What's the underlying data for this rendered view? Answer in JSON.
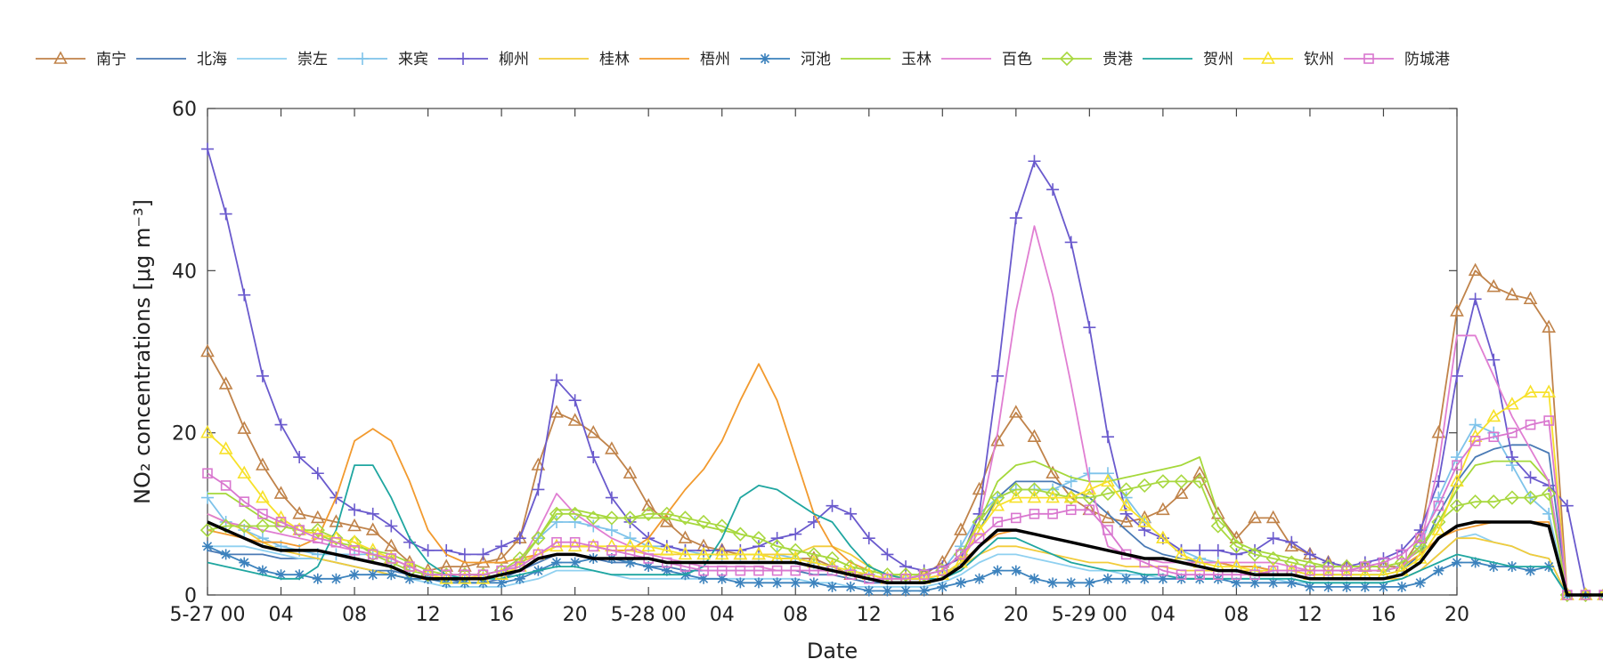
{
  "chart_data": {
    "type": "line",
    "xlabel": "Date",
    "ylabel": "NO₂ concentrations [μg m⁻³]",
    "ylim": [
      0,
      60
    ],
    "yticks": [
      0,
      20,
      40,
      60
    ],
    "xlim": [
      0,
      68
    ],
    "xticks": [
      {
        "x": 0,
        "label": "5-27 00"
      },
      {
        "x": 4,
        "label": "04"
      },
      {
        "x": 8,
        "label": "08"
      },
      {
        "x": 12,
        "label": "12"
      },
      {
        "x": 16,
        "label": "16"
      },
      {
        "x": 20,
        "label": "20"
      },
      {
        "x": 24,
        "label": "5-28 00"
      },
      {
        "x": 28,
        "label": "04"
      },
      {
        "x": 32,
        "label": "08"
      },
      {
        "x": 36,
        "label": "12"
      },
      {
        "x": 40,
        "label": "16"
      },
      {
        "x": 44,
        "label": "20"
      },
      {
        "x": 48,
        "label": "5-29 00"
      },
      {
        "x": 52,
        "label": "04"
      },
      {
        "x": 56,
        "label": "08"
      },
      {
        "x": 60,
        "label": "12"
      },
      {
        "x": 64,
        "label": "16"
      },
      {
        "x": 68,
        "label": "20"
      }
    ],
    "grid": false,
    "legend_position": "top",
    "series": [
      {
        "name": "南宁",
        "color": "#c0834a",
        "marker": "triangle",
        "values": [
          30,
          26,
          20.5,
          16,
          12.5,
          10,
          9.5,
          9,
          8.5,
          8,
          6,
          4,
          3,
          3.5,
          3.5,
          4,
          4.5,
          7,
          16,
          22.5,
          21.5,
          20,
          18,
          15,
          11,
          9,
          7,
          6,
          5.5,
          5,
          5,
          4.5,
          4.5,
          4.5,
          3.5,
          2.5,
          2.5,
          2,
          2,
          2.5,
          4,
          8,
          13,
          19,
          22.5,
          19.5,
          15,
          12,
          10.5,
          9.5,
          9,
          9.5,
          10.5,
          12.5,
          15,
          10,
          7,
          9.5,
          9.5,
          6,
          5,
          4,
          3.5,
          3.5,
          3.5,
          3.5,
          7,
          20,
          35,
          40,
          38,
          37,
          36.5,
          33,
          0,
          0,
          0,
          0,
          0,
          0
        ]
      },
      {
        "name": "北海",
        "color": "#4a7ab5",
        "marker": "none",
        "values": [
          5.5,
          5,
          5,
          5,
          4.5,
          4.5,
          4.5,
          4,
          3.5,
          3,
          3,
          2.5,
          2,
          2,
          1.5,
          1.5,
          2,
          3,
          4,
          5,
          5,
          4.5,
          4,
          4,
          3.5,
          3.5,
          3,
          3,
          3,
          3,
          3,
          3,
          3,
          2.5,
          2.5,
          2,
          1.5,
          1.5,
          1.5,
          1.5,
          2,
          4,
          8,
          12,
          14,
          14,
          14,
          13,
          12,
          10,
          8,
          6,
          5,
          4.5,
          4,
          4,
          3.5,
          3.5,
          3,
          3,
          2.5,
          2.5,
          2.5,
          2.5,
          2.5,
          3,
          5,
          10,
          14,
          17,
          18,
          18.5,
          18.5,
          17.5,
          0,
          0,
          0,
          0,
          0,
          0
        ]
      },
      {
        "name": "崇左",
        "color": "#8fd0f0",
        "marker": "none",
        "values": [
          6,
          6,
          6,
          5.5,
          5,
          4.5,
          4.5,
          4,
          3.5,
          3,
          2.5,
          2,
          1.5,
          1,
          1,
          1,
          1,
          1.5,
          2,
          3,
          3,
          3,
          2.5,
          2,
          2,
          2,
          2,
          2,
          2,
          2,
          2,
          2,
          2,
          1.5,
          1.5,
          1,
          1,
          1,
          1,
          1,
          1.5,
          2.5,
          4,
          5,
          5,
          4.5,
          4,
          3.5,
          3,
          3,
          2.5,
          2.5,
          2,
          2,
          2,
          2,
          2,
          2,
          2,
          1.5,
          1.5,
          1.5,
          1.5,
          1.5,
          1.5,
          2,
          3,
          5,
          7,
          7.5,
          6.5,
          6,
          5,
          4.5,
          0,
          0,
          0,
          0,
          0,
          0
        ]
      },
      {
        "name": "来宾",
        "color": "#7ec3ea",
        "marker": "plus",
        "values": [
          12,
          9,
          8,
          7,
          6,
          5.5,
          5,
          5,
          5,
          5,
          4,
          3,
          2.5,
          2.5,
          2.5,
          2.5,
          3,
          4,
          7,
          9,
          9,
          8.5,
          8,
          7,
          6,
          6,
          5.5,
          5,
          5,
          5,
          5,
          5,
          4.5,
          4,
          3.5,
          3,
          2.5,
          2,
          2,
          2.5,
          3,
          6,
          10,
          12,
          13,
          13,
          13,
          14,
          15,
          15,
          12,
          9,
          7,
          5.5,
          4.5,
          4,
          3.5,
          3.5,
          3,
          3,
          3,
          3,
          3,
          3,
          3,
          3.5,
          6,
          12,
          17,
          21,
          20,
          16,
          12,
          10,
          0,
          0,
          0,
          0,
          0,
          0
        ]
      },
      {
        "name": "柳州",
        "color": "#6a5acd",
        "marker": "plus",
        "values": [
          55,
          47,
          37,
          27,
          21,
          17,
          15,
          12,
          10.5,
          10,
          8.5,
          6.5,
          5.5,
          5.5,
          5,
          5,
          6,
          7,
          13,
          26.5,
          24,
          17,
          12,
          9,
          7,
          6,
          5.5,
          5.5,
          5.5,
          5.5,
          6,
          7,
          7.5,
          9,
          11,
          10,
          7,
          5,
          3.5,
          3,
          3.5,
          4.5,
          10,
          27,
          46.5,
          53.5,
          50,
          43.5,
          33,
          19.5,
          10,
          8,
          7,
          5.5,
          5.5,
          5.5,
          5,
          5.5,
          7,
          6.5,
          5,
          4,
          3.5,
          4,
          4.5,
          5.5,
          8,
          14,
          27,
          36.5,
          29,
          17,
          14.5,
          13.5,
          11,
          0,
          0,
          0,
          0,
          0,
          0
        ]
      },
      {
        "name": "桂林",
        "color": "#f2cc3a",
        "marker": "none",
        "values": [
          10,
          9,
          8,
          6.5,
          5.5,
          5,
          4.5,
          4,
          3.5,
          3,
          2.5,
          2,
          2,
          2,
          2,
          2.5,
          3,
          4,
          5,
          6,
          6,
          6,
          5.5,
          5.5,
          5,
          5,
          5,
          5,
          5,
          5,
          5,
          5,
          5,
          6,
          6,
          5,
          3.5,
          2.5,
          2,
          2,
          2.5,
          3.5,
          5,
          6,
          6,
          5.5,
          5,
          4.5,
          4,
          4,
          3.5,
          3.5,
          3.5,
          3,
          3,
          3,
          3,
          3,
          2.5,
          2.5,
          2,
          2,
          2,
          2,
          2,
          2,
          3,
          5,
          7,
          7,
          6.5,
          6,
          5,
          4.5,
          0,
          0,
          0,
          0,
          0,
          0
        ]
      },
      {
        "name": "梧州",
        "color": "#f29a2e",
        "marker": "none",
        "values": [
          8,
          7.5,
          7,
          6.5,
          6.5,
          6,
          7,
          12,
          19,
          20.5,
          19,
          14,
          8,
          5,
          4,
          4,
          4,
          4.5,
          5,
          6,
          6,
          6,
          5.5,
          5.5,
          7,
          10,
          13,
          15.5,
          19,
          24,
          28.5,
          24,
          17,
          10,
          6,
          4,
          3,
          2.5,
          2,
          2,
          2.5,
          4,
          6,
          7.5,
          8,
          7.5,
          7,
          6.5,
          6,
          5.5,
          5,
          4.5,
          4.5,
          4,
          4,
          4,
          3.5,
          3.5,
          3,
          3,
          3,
          3,
          3,
          3,
          3,
          3.5,
          5,
          7,
          8,
          8.5,
          9,
          9,
          9,
          9,
          0,
          0,
          0,
          0,
          0,
          0
        ]
      },
      {
        "name": "河池",
        "color": "#3c82bd",
        "marker": "asterisk",
        "values": [
          6,
          5,
          4,
          3,
          2.5,
          2.5,
          2,
          2,
          2.5,
          2.5,
          2.5,
          2,
          2,
          1.5,
          1.5,
          1.5,
          1.5,
          2,
          3,
          4,
          4,
          4.5,
          4.5,
          4,
          3.5,
          3,
          2.5,
          2,
          2,
          1.5,
          1.5,
          1.5,
          1.5,
          1.5,
          1,
          1,
          0.5,
          0.5,
          0.5,
          0.5,
          1,
          1.5,
          2,
          3,
          3,
          2,
          1.5,
          1.5,
          1.5,
          2,
          2,
          2,
          2,
          2,
          2,
          2,
          1.5,
          1.5,
          1.5,
          1.5,
          1,
          1,
          1,
          1,
          1,
          1,
          1.5,
          3,
          4,
          4,
          3.5,
          3.5,
          3,
          3.5,
          0,
          0,
          0,
          0,
          0,
          0
        ]
      },
      {
        "name": "玉林",
        "color": "#a5d83a",
        "marker": "none",
        "values": [
          12.5,
          12.5,
          11,
          9.5,
          8.5,
          8,
          7.5,
          6.5,
          6,
          5.5,
          5,
          4,
          3,
          2.5,
          2.5,
          2.5,
          3,
          4,
          7,
          10.5,
          10.5,
          10,
          9.5,
          9.5,
          9.5,
          9.5,
          9,
          8.5,
          8,
          7.5,
          7,
          6,
          5.5,
          5,
          4.5,
          3.5,
          3,
          2.5,
          2.5,
          2.5,
          3,
          5,
          9,
          14,
          16,
          16.5,
          15.5,
          14.5,
          14,
          14,
          14.5,
          15,
          15.5,
          16,
          17,
          10,
          6.5,
          5.5,
          5,
          4.5,
          4,
          3.5,
          3.5,
          3.5,
          3.5,
          4,
          5.5,
          9,
          13,
          16,
          16.5,
          16.5,
          16.5,
          14,
          0,
          0,
          0,
          0,
          0,
          0
        ]
      },
      {
        "name": "百色",
        "color": "#e07ed2",
        "marker": "none",
        "values": [
          10,
          9,
          8.5,
          8,
          7.5,
          7,
          6.5,
          6,
          5.5,
          5,
          4,
          3,
          2.5,
          2.5,
          2.5,
          2.5,
          3,
          4,
          8,
          12.5,
          10,
          8.5,
          7,
          6,
          5,
          4.5,
          4,
          3.5,
          3.5,
          3.5,
          3.5,
          3,
          3,
          3,
          3,
          2.5,
          2,
          2,
          2,
          2,
          2.5,
          4,
          9,
          20,
          35,
          45.5,
          37,
          26,
          14,
          6,
          5,
          4.5,
          4,
          4,
          4,
          4,
          4,
          4,
          4,
          3.5,
          3,
          3,
          3,
          3,
          3,
          3.5,
          6,
          16,
          32,
          32,
          27,
          22,
          18,
          14,
          0,
          0,
          0,
          0,
          0,
          0
        ]
      },
      {
        "name": "贵港",
        "color": "#a8d83f",
        "marker": "diamond",
        "values": [
          8,
          8.5,
          8.5,
          8.5,
          8.5,
          8,
          8,
          7,
          6.5,
          5,
          4,
          3,
          2.5,
          2.5,
          2.5,
          2.5,
          3,
          4.5,
          7,
          10,
          10,
          9.5,
          9.5,
          9.5,
          10,
          10,
          9.5,
          9,
          8.5,
          7.5,
          7,
          6,
          5.5,
          5,
          4.5,
          3.5,
          3,
          2.5,
          2.5,
          2.5,
          3,
          5,
          9,
          12,
          13,
          13,
          12.5,
          12,
          12,
          12.5,
          13,
          13.5,
          14,
          14,
          14,
          8.5,
          6,
          5,
          4.5,
          4,
          3.5,
          3.5,
          3.5,
          3.5,
          3.5,
          4,
          6,
          9,
          11,
          11.5,
          11.5,
          12,
          12,
          12.5,
          0,
          0,
          0,
          0,
          0,
          0
        ]
      },
      {
        "name": "贺州",
        "color": "#1fa6a0",
        "marker": "none",
        "values": [
          4,
          3.5,
          3,
          2.5,
          2,
          2,
          3.5,
          8,
          16,
          16,
          12,
          7,
          4,
          2.5,
          2,
          2,
          2,
          2.5,
          3,
          3.5,
          3.5,
          3,
          2.5,
          2.5,
          2.5,
          2.5,
          2.5,
          3.5,
          7,
          12,
          13.5,
          13,
          11.5,
          10,
          9,
          6,
          3.5,
          2.5,
          2,
          2,
          2,
          3,
          5,
          7,
          7,
          6,
          5,
          4,
          3.5,
          3,
          3,
          2.5,
          2.5,
          2,
          2,
          2,
          2,
          2,
          2,
          2,
          1.5,
          1.5,
          1.5,
          1.5,
          1.5,
          2,
          3,
          4,
          5,
          4.5,
          4,
          3.5,
          3.5,
          3.5,
          0,
          0,
          0,
          0,
          0,
          0
        ]
      },
      {
        "name": "钦州",
        "color": "#f7e12a",
        "marker": "triangle",
        "values": [
          20,
          18,
          15,
          12,
          9.5,
          8,
          7.5,
          7,
          6.5,
          5.5,
          4.5,
          3.5,
          2.5,
          2,
          2,
          2,
          2.5,
          3.5,
          5,
          6,
          6,
          6,
          6,
          6,
          6,
          5.5,
          5,
          5,
          5,
          5,
          5,
          4.5,
          4.5,
          4,
          3.5,
          3,
          2.5,
          2,
          2,
          2,
          2.5,
          4,
          8,
          11,
          12,
          12,
          12,
          12,
          13,
          14,
          11,
          9,
          7,
          5,
          4,
          3.5,
          3.5,
          3,
          3,
          3,
          2.5,
          2.5,
          2.5,
          2.5,
          2.5,
          3,
          4.5,
          8,
          14,
          19.5,
          22,
          23.5,
          25,
          25,
          0,
          0,
          0,
          0,
          0,
          0
        ]
      },
      {
        "name": "防城港",
        "color": "#d977cf",
        "marker": "square",
        "values": [
          15,
          13.5,
          11.5,
          10,
          9,
          8,
          7,
          6.5,
          5.5,
          5,
          4.5,
          3.5,
          2.5,
          2.5,
          2.5,
          2.5,
          3,
          3.5,
          5,
          6.5,
          6.5,
          6,
          5.5,
          5,
          4.5,
          4,
          3.5,
          3,
          3,
          3,
          3,
          3,
          3,
          3,
          3,
          2.5,
          2,
          2,
          2,
          2.5,
          3,
          5,
          7,
          9,
          9.5,
          10,
          10,
          10.5,
          10.5,
          8,
          5,
          4,
          3,
          2.5,
          2.5,
          2.5,
          2.5,
          2.5,
          3,
          3,
          3,
          3,
          3,
          3.5,
          4,
          5,
          7,
          11,
          16,
          19,
          19.5,
          20,
          21,
          21.5,
          0,
          0,
          0,
          0,
          0,
          0
        ]
      },
      {
        "name": "",
        "color": "#000000",
        "marker": "none",
        "width": 3.5,
        "values": [
          9,
          8,
          7,
          6,
          5.5,
          5.5,
          5.5,
          5,
          4.5,
          4,
          3.5,
          2.5,
          2,
          2,
          2,
          2,
          2.5,
          3,
          4.5,
          5,
          5,
          4.5,
          4.5,
          4.5,
          4.5,
          4,
          4,
          4,
          4,
          4,
          4,
          4,
          4,
          3.5,
          3,
          2.5,
          2,
          1.5,
          1.5,
          1.5,
          2,
          3.5,
          6,
          8,
          8,
          7.5,
          7,
          6.5,
          6,
          5.5,
          5,
          4.5,
          4.5,
          4,
          3.5,
          3,
          3,
          2.5,
          2.5,
          2.5,
          2,
          2,
          2,
          2,
          2,
          2.5,
          4,
          7,
          8.5,
          9,
          9,
          9,
          9,
          8.5,
          0,
          0,
          0,
          0,
          0,
          0
        ]
      }
    ]
  }
}
